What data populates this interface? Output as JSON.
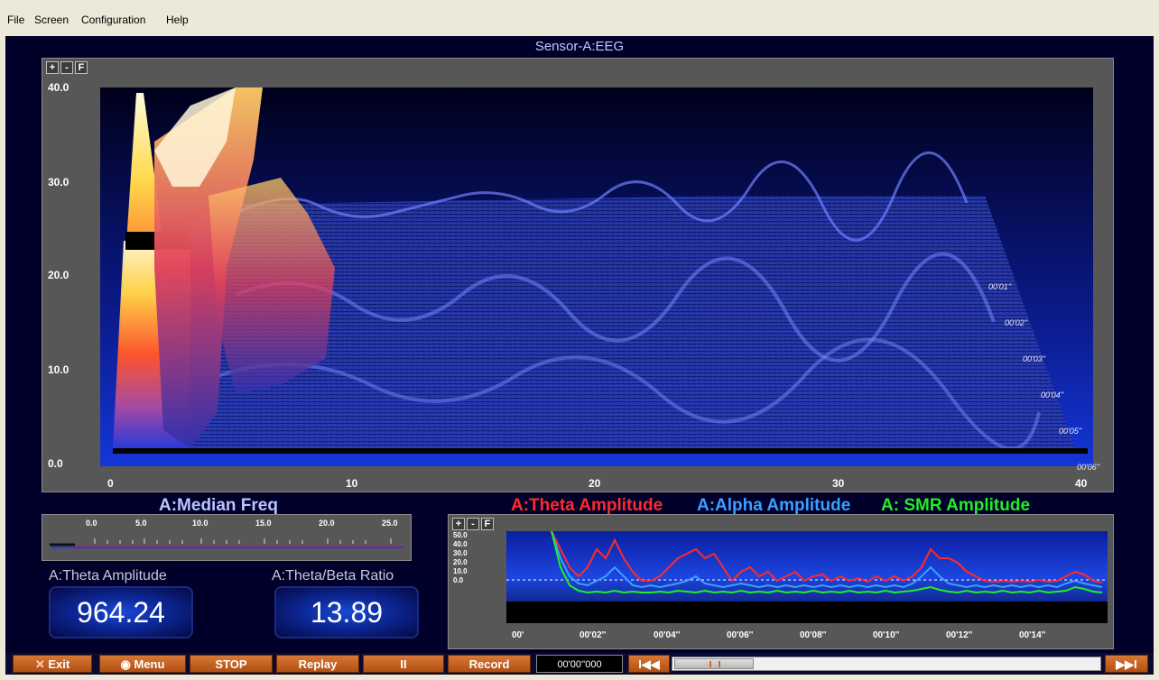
{
  "menu": {
    "file": "File",
    "screen": "Screen",
    "configuration": "Configuration",
    "help": "Help"
  },
  "sensor_title": "Sensor-A:EEG",
  "zoom": {
    "plus": "+",
    "minus": "-",
    "fit": "F"
  },
  "spectrum": {
    "y_ticks": [
      "40.0",
      "30.0",
      "20.0",
      "10.0",
      "0.0"
    ],
    "x_ticks": [
      "0",
      "10",
      "20",
      "30",
      "40"
    ],
    "time_labels": [
      "00'01''",
      "00'02''",
      "00'03''",
      "00'04''",
      "00'05''",
      "00'06''"
    ]
  },
  "median_freq": {
    "title": "A:Median Freq",
    "ticks": [
      "0.0",
      "5.0",
      "10.0",
      "15.0",
      "20.0",
      "25.0"
    ]
  },
  "amplitudes": {
    "theta_title": "A:Theta Amplitude",
    "alpha_title": "A:Alpha Amplitude",
    "smr_title": "A: SMR Amplitude",
    "y_ticks": [
      "50.0",
      "40.0",
      "30.0",
      "20.0",
      "10.0",
      "0.0"
    ],
    "x_ticks": [
      "00'",
      "00'02''",
      "00'04''",
      "00'06''",
      "00'08''",
      "00'10''",
      "00'12''",
      "00'14''"
    ]
  },
  "theta_amplitude": {
    "label": "A:Theta Amplitude",
    "value": "964.24"
  },
  "theta_beta": {
    "label": "A:Theta/Beta Ratio",
    "value": "13.89"
  },
  "toolbar": {
    "exit": "Exit",
    "menu": "Menu",
    "stop": "STOP",
    "replay": "Replay",
    "pause": "II",
    "record": "Record",
    "timecode": "00'00''000",
    "rewind": "I◀◀",
    "forward": "▶▶I"
  },
  "colors": {
    "theta": "#ff2a2a",
    "alpha": "#3aa0ff",
    "smr": "#22ee22",
    "button": "#c86424"
  }
}
